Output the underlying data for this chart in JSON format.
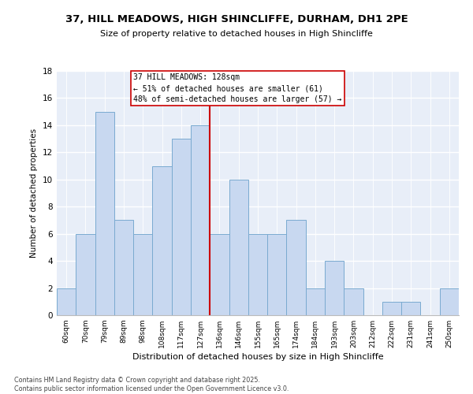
{
  "title1": "37, HILL MEADOWS, HIGH SHINCLIFFE, DURHAM, DH1 2PE",
  "title2": "Size of property relative to detached houses in High Shincliffe",
  "xlabel": "Distribution of detached houses by size in High Shincliffe",
  "ylabel": "Number of detached properties",
  "categories": [
    "60sqm",
    "70sqm",
    "79sqm",
    "89sqm",
    "98sqm",
    "108sqm",
    "117sqm",
    "127sqm",
    "136sqm",
    "146sqm",
    "155sqm",
    "165sqm",
    "174sqm",
    "184sqm",
    "193sqm",
    "203sqm",
    "212sqm",
    "222sqm",
    "231sqm",
    "241sqm",
    "250sqm"
  ],
  "values": [
    2,
    6,
    15,
    7,
    6,
    11,
    13,
    14,
    6,
    10,
    6,
    6,
    7,
    2,
    4,
    2,
    0,
    1,
    1,
    0,
    2
  ],
  "bar_color": "#c8d8f0",
  "bar_edge_color": "#7aaad0",
  "property_bin_index": 7,
  "annotation_title": "37 HILL MEADOWS: 128sqm",
  "annotation_line1": "← 51% of detached houses are smaller (61)",
  "annotation_line2": "48% of semi-detached houses are larger (57) →",
  "red_line_color": "#cc0000",
  "ylim": [
    0,
    18
  ],
  "yticks": [
    0,
    2,
    4,
    6,
    8,
    10,
    12,
    14,
    16,
    18
  ],
  "background_color": "#ffffff",
  "plot_bg_color": "#e8eef8",
  "grid_color": "#ffffff",
  "footer_line1": "Contains HM Land Registry data © Crown copyright and database right 2025.",
  "footer_line2": "Contains public sector information licensed under the Open Government Licence v3.0."
}
